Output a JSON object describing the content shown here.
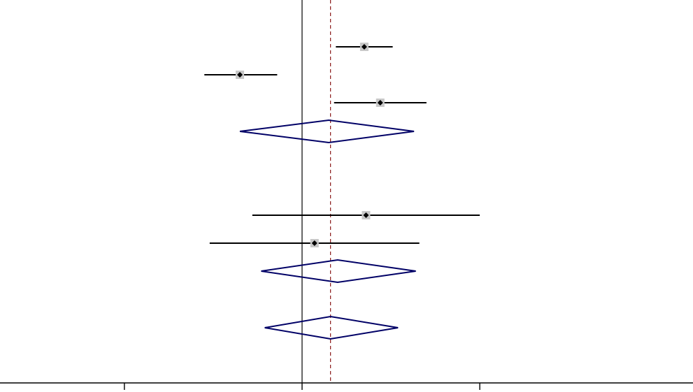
{
  "chart_data": {
    "type": "forest",
    "xlim": [
      -1.7,
      2.2
    ],
    "grid": false,
    "null_line_x": 0,
    "overall_effect_line_x": 0.16,
    "x_ticks": [
      -1,
      0,
      1
    ],
    "studies": [
      {
        "estimate": 0.35,
        "ci_low": 0.19,
        "ci_high": 0.51
      },
      {
        "estimate": -0.35,
        "ci_low": -0.55,
        "ci_high": -0.14
      },
      {
        "estimate": 0.44,
        "ci_low": 0.18,
        "ci_high": 0.7
      },
      {
        "estimate": 0.36,
        "ci_low": -0.28,
        "ci_high": 1.0
      },
      {
        "estimate": 0.07,
        "ci_low": -0.52,
        "ci_high": 0.66
      }
    ],
    "pooled": [
      {
        "estimate": 0.15,
        "ci_low": -0.35,
        "ci_high": 0.63
      },
      {
        "estimate": 0.2,
        "ci_low": -0.23,
        "ci_high": 0.64
      },
      {
        "estimate": 0.16,
        "ci_low": -0.21,
        "ci_high": 0.54
      }
    ],
    "colors": {
      "study": "#000000",
      "marker_box": "#c8c8c8",
      "pooled": "#000066",
      "overall_line": "#8b1a1a",
      "axis": "#000000"
    }
  }
}
